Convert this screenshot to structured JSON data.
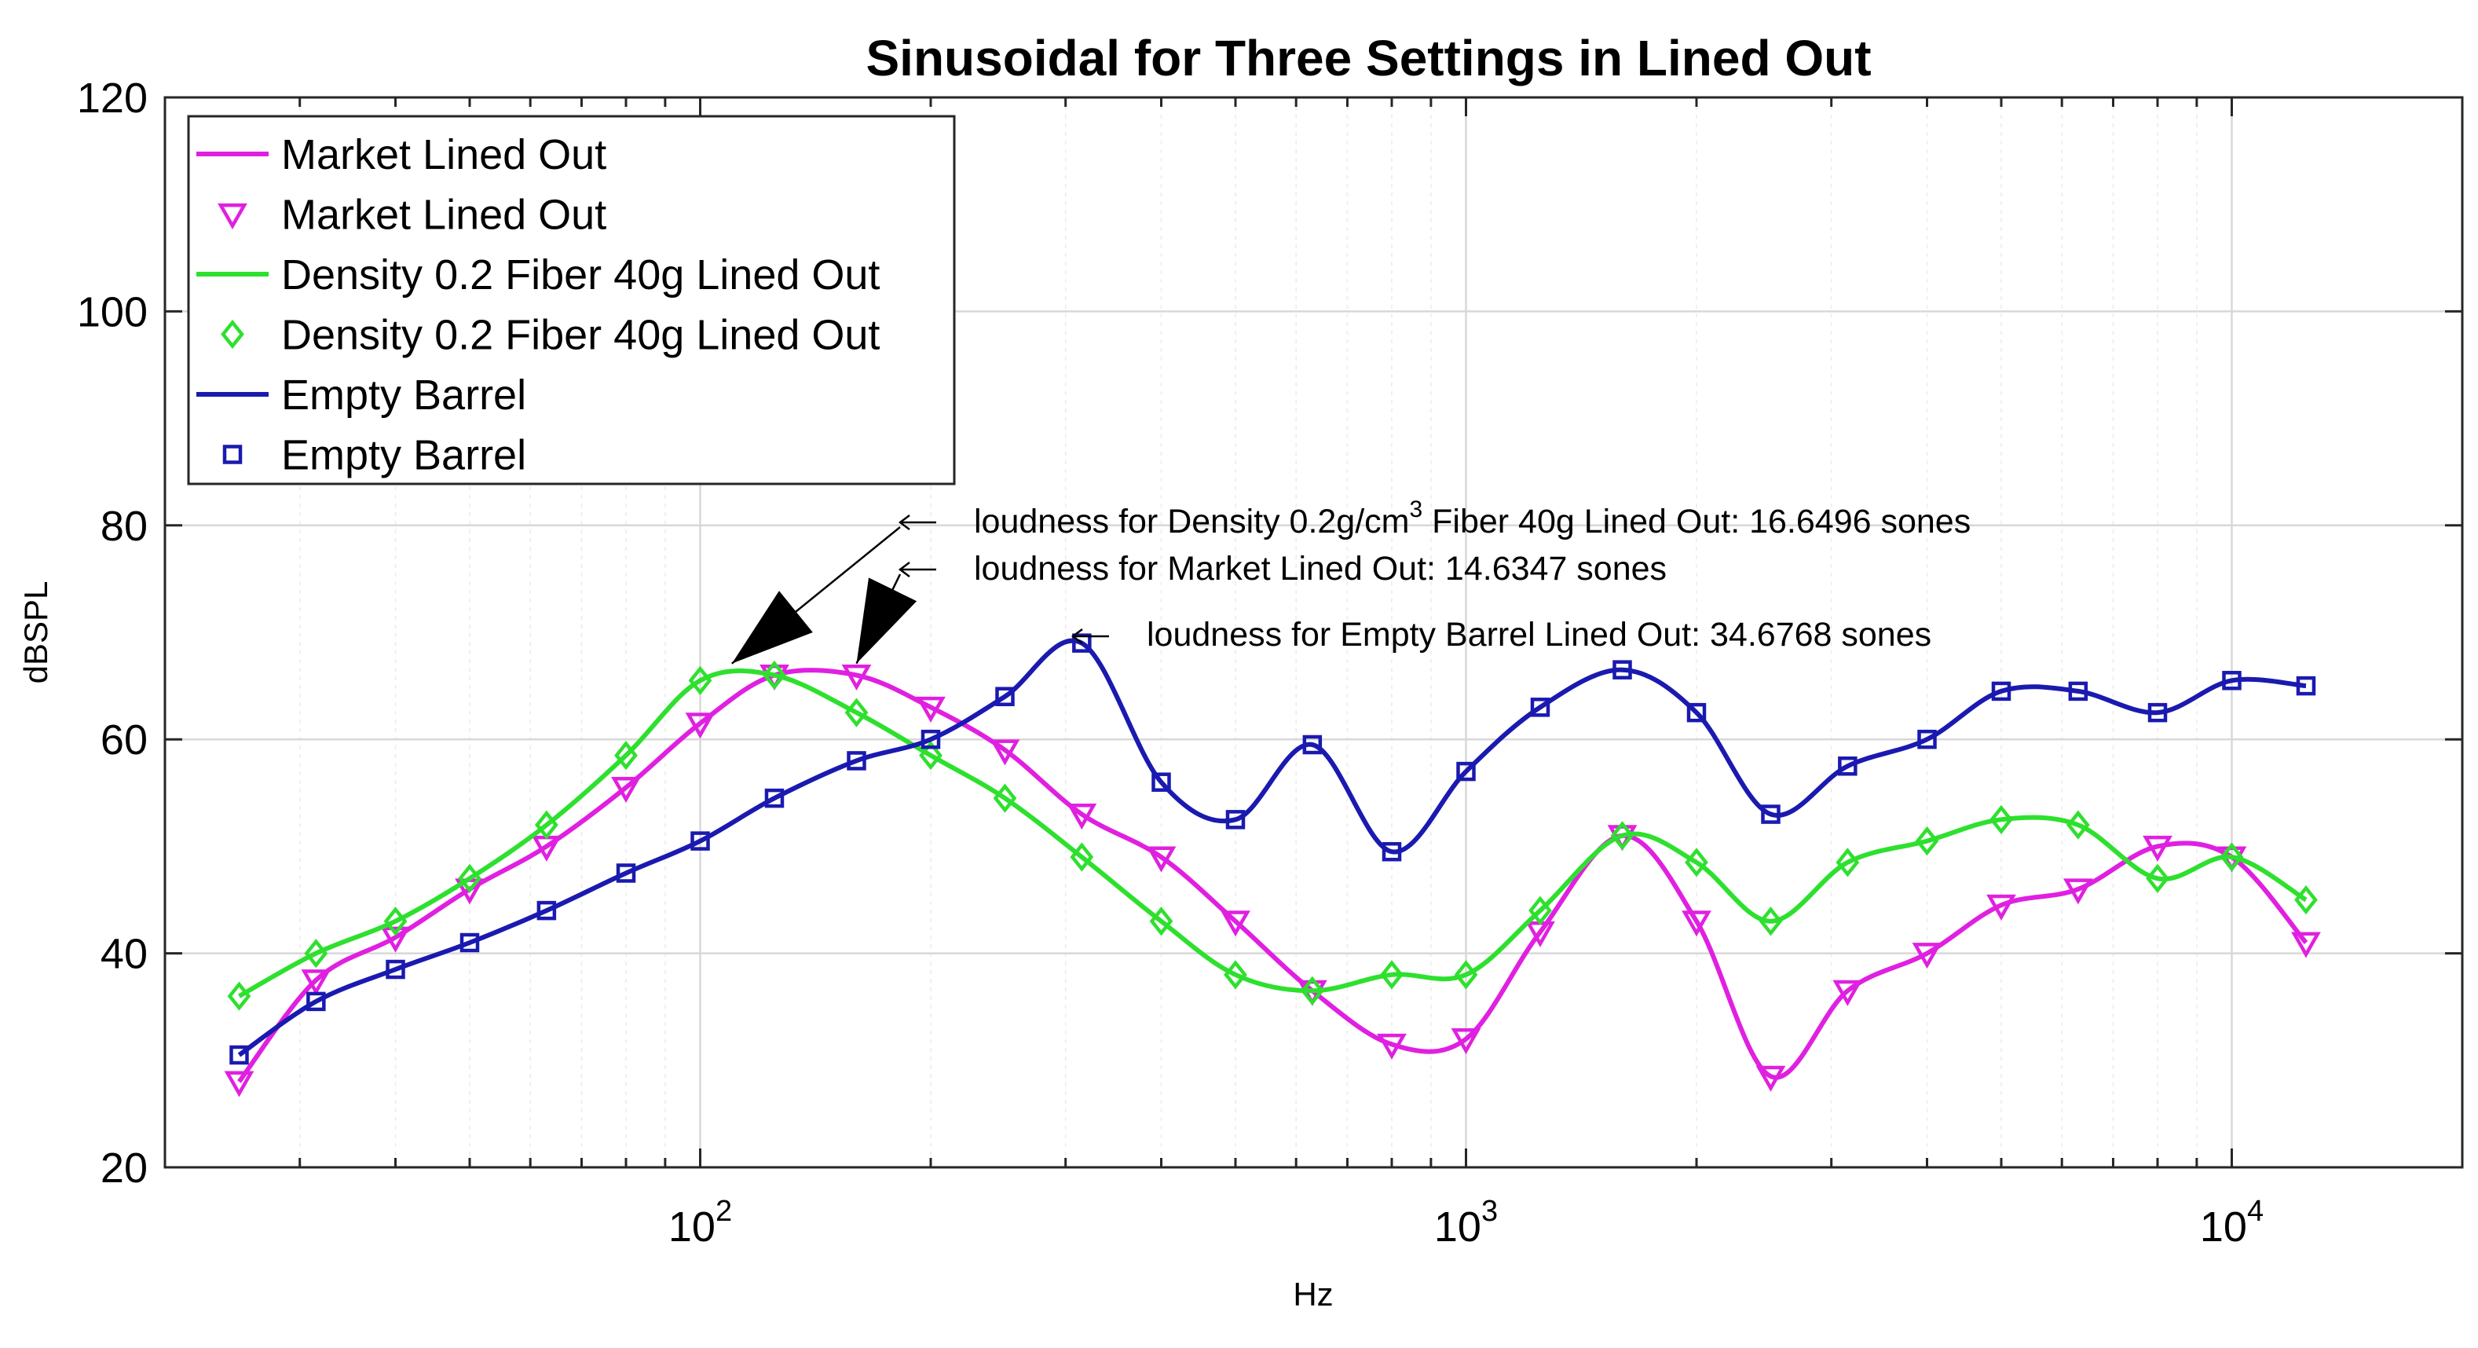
{
  "chart_data": {
    "type": "line",
    "title": "Sinusoidal for Three Settings in Lined Out",
    "xlabel": "Hz",
    "ylabel": "dBSPL",
    "x_scale": "log",
    "xlim": [
      20,
      20000
    ],
    "ylim": [
      20,
      120
    ],
    "yticks": [
      20,
      40,
      60,
      80,
      100,
      120
    ],
    "xticks": [
      {
        "value": 100,
        "base": "10",
        "exp": "2"
      },
      {
        "value": 1000,
        "base": "10",
        "exp": "3"
      },
      {
        "value": 10000,
        "base": "10",
        "exp": "4"
      }
    ],
    "grid": true,
    "legend_position": "top-left",
    "x": [
      25,
      31.5,
      40,
      50,
      63,
      80,
      100,
      125,
      160,
      200,
      250,
      315,
      400,
      500,
      630,
      800,
      1000,
      1250,
      1600,
      2000,
      2500,
      3150,
      4000,
      5000,
      6300,
      8000,
      10000,
      12500
    ],
    "series": [
      {
        "name": "Market Lined Out",
        "color": "#e020e0",
        "marker": "triangle-down",
        "values": [
          28,
          37.5,
          41.5,
          46,
          50,
          55.5,
          61.5,
          66,
          66,
          63,
          59,
          53,
          49,
          43,
          36.5,
          31.5,
          32,
          42,
          51,
          43,
          28.5,
          36.5,
          40,
          44.5,
          46,
          50,
          49,
          41
        ]
      },
      {
        "name": "Density 0.2 Fiber 40g Lined Out",
        "color": "#2ee02e",
        "marker": "diamond",
        "values": [
          36,
          40,
          43,
          47,
          52,
          58.5,
          65.5,
          66,
          62.5,
          58.5,
          54.5,
          49,
          43,
          38,
          36.5,
          38,
          38,
          44,
          51,
          48.5,
          43,
          48.5,
          50.5,
          52.5,
          52,
          47,
          49,
          45
        ]
      },
      {
        "name": "Empty Barrel",
        "color": "#1a1ab0",
        "marker": "square",
        "values": [
          30.5,
          35.5,
          38.5,
          41,
          44,
          47.5,
          50.5,
          54.5,
          58,
          60,
          64,
          69,
          56,
          52.5,
          59.5,
          49.5,
          57,
          63,
          66.5,
          62.5,
          53,
          57.5,
          60,
          64.5,
          64.5,
          62.5,
          65.5,
          65
        ]
      }
    ],
    "annotations": [
      {
        "pre": "loudness for Density 0.2g/cm",
        "sup": "3",
        "post": " Fiber 40g Lined Out: 16.6496 sones",
        "arrow_x": 110,
        "arrow_y": 66.5
      },
      {
        "pre": "loudness for Market Lined Out: 14.6347 sones",
        "sup": "",
        "post": "",
        "arrow_x": 160,
        "arrow_y": 66.5
      },
      {
        "pre": "loudness for Empty Barrel Lined Out: 34.6768 sones",
        "sup": "",
        "post": "",
        "arrow_x": null,
        "arrow_y": null
      }
    ]
  }
}
